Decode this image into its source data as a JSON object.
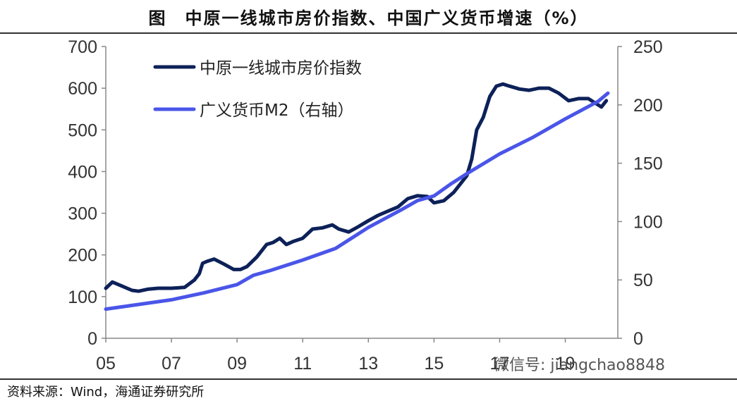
{
  "title": "图　中原一线城市房价指数、中国广义货币增速（%）",
  "source": "资料来源：Wind，海通证券研究所",
  "watermark": "微信号: jiangchao8848",
  "chart_data": {
    "type": "line",
    "title": "图　中原一线城市房价指数、中国广义货币增速（%）",
    "x_tick_labels": [
      "05",
      "07",
      "09",
      "11",
      "13",
      "15",
      "17",
      "19"
    ],
    "x_tick_years": [
      2005,
      2007,
      2009,
      2011,
      2013,
      2015,
      2017,
      2019
    ],
    "xlim": [
      2005,
      2020.6
    ],
    "y_left": {
      "ylim": [
        0,
        700
      ],
      "ticks": [
        0,
        100,
        200,
        300,
        400,
        500,
        600,
        700
      ]
    },
    "y_right": {
      "ylim": [
        0,
        250
      ],
      "ticks": [
        0,
        50,
        100,
        150,
        200,
        250
      ]
    },
    "grid": false,
    "legend_placement": "top-left",
    "series": [
      {
        "name": "中原一线城市房价指数",
        "axis": "left",
        "color": "#0d2159",
        "x": [
          2005.0,
          2005.2,
          2005.5,
          2005.8,
          2006.0,
          2006.3,
          2006.6,
          2007.0,
          2007.4,
          2007.7,
          2007.85,
          2007.95,
          2008.1,
          2008.3,
          2008.6,
          2008.9,
          2009.1,
          2009.3,
          2009.6,
          2009.9,
          2010.1,
          2010.3,
          2010.5,
          2010.7,
          2011.0,
          2011.3,
          2011.6,
          2011.9,
          2012.1,
          2012.4,
          2012.7,
          2013.0,
          2013.3,
          2013.6,
          2013.9,
          2014.2,
          2014.5,
          2014.8,
          2015.0,
          2015.3,
          2015.6,
          2015.8,
          2016.0,
          2016.15,
          2016.3,
          2016.5,
          2016.7,
          2016.9,
          2017.1,
          2017.3,
          2017.6,
          2017.9,
          2018.2,
          2018.5,
          2018.8,
          2019.1,
          2019.4,
          2019.7,
          2019.9,
          2020.1,
          2020.25
        ],
        "values": [
          120,
          135,
          125,
          115,
          113,
          118,
          120,
          120,
          122,
          140,
          155,
          180,
          185,
          190,
          178,
          165,
          165,
          172,
          195,
          225,
          230,
          240,
          225,
          232,
          240,
          262,
          265,
          272,
          262,
          255,
          268,
          282,
          295,
          305,
          315,
          335,
          342,
          340,
          325,
          330,
          350,
          370,
          390,
          430,
          500,
          530,
          580,
          605,
          610,
          605,
          598,
          595,
          600,
          600,
          588,
          570,
          575,
          575,
          565,
          555,
          570
        ]
      },
      {
        "name": "广义货币M2（右轴）",
        "axis": "right",
        "color": "#4a55e8",
        "x": [
          2005.0,
          2006.0,
          2007.0,
          2008.0,
          2009.0,
          2009.5,
          2010.0,
          2011.0,
          2012.0,
          2013.0,
          2014.0,
          2014.5,
          2015.0,
          2015.5,
          2016.0,
          2017.0,
          2018.0,
          2019.0,
          2020.0,
          2020.3
        ],
        "values": [
          25,
          29,
          33,
          39,
          46,
          54,
          58,
          67,
          77,
          95,
          110,
          118,
          122,
          132,
          141,
          158,
          172,
          188,
          203,
          210
        ]
      }
    ]
  }
}
